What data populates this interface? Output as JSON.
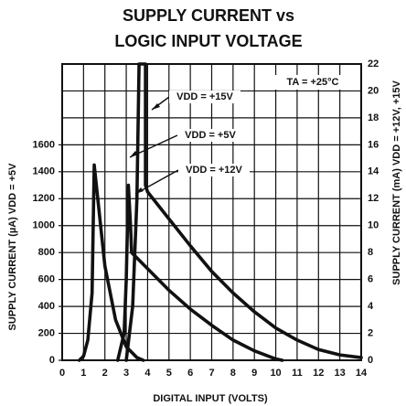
{
  "chart_data": {
    "type": "line",
    "title": [
      "SUPPLY CURRENT vs",
      "LOGIC INPUT VOLTAGE"
    ],
    "xlabel": "DIGITAL INPUT (VOLTS)",
    "ylabel": "SUPPLY CURRENT (µA) VDD = +5V",
    "y2label": "SUPPLY CURRENT (mA) VDD = +12V, +15V",
    "annotations": [
      "TA = +25°C"
    ],
    "xlim": [
      0,
      14
    ],
    "xticks": [
      0,
      1,
      2,
      3,
      4,
      5,
      6,
      7,
      8,
      9,
      10,
      11,
      12,
      13,
      14
    ],
    "ylim": [
      0,
      2200
    ],
    "yticks": [
      0,
      200,
      400,
      600,
      800,
      1000,
      1200,
      1400,
      1600
    ],
    "y2lim": [
      0,
      22
    ],
    "y2ticks": [
      0,
      2,
      4,
      6,
      8,
      10,
      12,
      14,
      16,
      18,
      20,
      22
    ],
    "grid": true,
    "series": [
      {
        "name": "VDD = +5V",
        "color": "#111111",
        "axis": "y",
        "x": [
          0.8,
          1.0,
          1.2,
          1.4,
          1.5,
          1.6,
          2.0,
          2.5,
          3.0,
          3.5,
          3.8
        ],
        "values": [
          0,
          30,
          150,
          500,
          1450,
          1300,
          700,
          300,
          100,
          20,
          0
        ]
      },
      {
        "name": "VDD = +12V",
        "color": "#111111",
        "axis": "y2",
        "x": [
          2.6,
          2.9,
          3.0,
          3.1,
          3.2,
          3.25,
          4,
          5,
          6,
          7,
          8,
          9,
          10,
          10.3
        ],
        "values": [
          0,
          2,
          6,
          13,
          10,
          8,
          6.8,
          5.2,
          3.8,
          2.6,
          1.5,
          0.7,
          0.1,
          0
        ]
      },
      {
        "name": "VDD = +15V",
        "color": "#111111",
        "axis": "y2",
        "x": [
          3.0,
          3.3,
          3.5,
          3.6,
          3.9,
          3.9,
          4,
          5,
          6,
          7,
          8,
          9,
          10,
          11,
          12,
          13,
          14
        ],
        "values": [
          0,
          4,
          12,
          22,
          22,
          13,
          12.5,
          10.5,
          8.5,
          6.6,
          5,
          3.6,
          2.4,
          1.5,
          0.8,
          0.4,
          0.2
        ]
      }
    ]
  }
}
